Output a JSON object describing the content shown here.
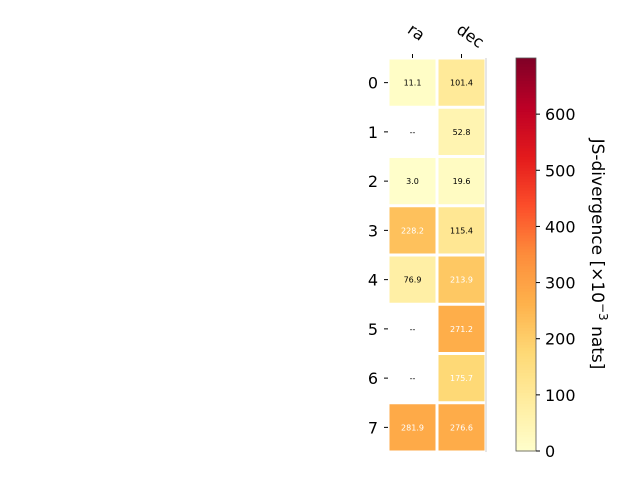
{
  "chart_data": {
    "type": "heatmap",
    "columns": [
      "ra",
      "dec"
    ],
    "rows": [
      "0",
      "1",
      "2",
      "3",
      "4",
      "5",
      "6",
      "7"
    ],
    "values": [
      [
        11.1,
        101.4
      ],
      [
        null,
        52.8
      ],
      [
        3.0,
        19.6
      ],
      [
        228.2,
        115.4
      ],
      [
        76.9,
        213.9
      ],
      [
        null,
        271.2
      ],
      [
        null,
        175.7
      ],
      [
        281.9,
        276.6
      ]
    ],
    "cell_labels": [
      [
        "11.1",
        "101.4"
      ],
      [
        "--",
        "52.8"
      ],
      [
        "3.0",
        "19.6"
      ],
      [
        "228.2",
        "115.4"
      ],
      [
        "76.9",
        "213.9"
      ],
      [
        "--",
        "271.2"
      ],
      [
        "--",
        "175.7"
      ],
      [
        "281.9",
        "276.6"
      ]
    ],
    "colorbar": {
      "label_prefix": "JS-divergence [×10",
      "label_exponent": "−3",
      "label_suffix": " nats]",
      "range": [
        0,
        700
      ],
      "ticks": [
        "0",
        "100",
        "200",
        "300",
        "400",
        "500",
        "600"
      ],
      "tick_values": [
        0,
        100,
        200,
        300,
        400,
        500,
        600
      ],
      "colormap": "YlOrRd"
    },
    "grid": false
  }
}
